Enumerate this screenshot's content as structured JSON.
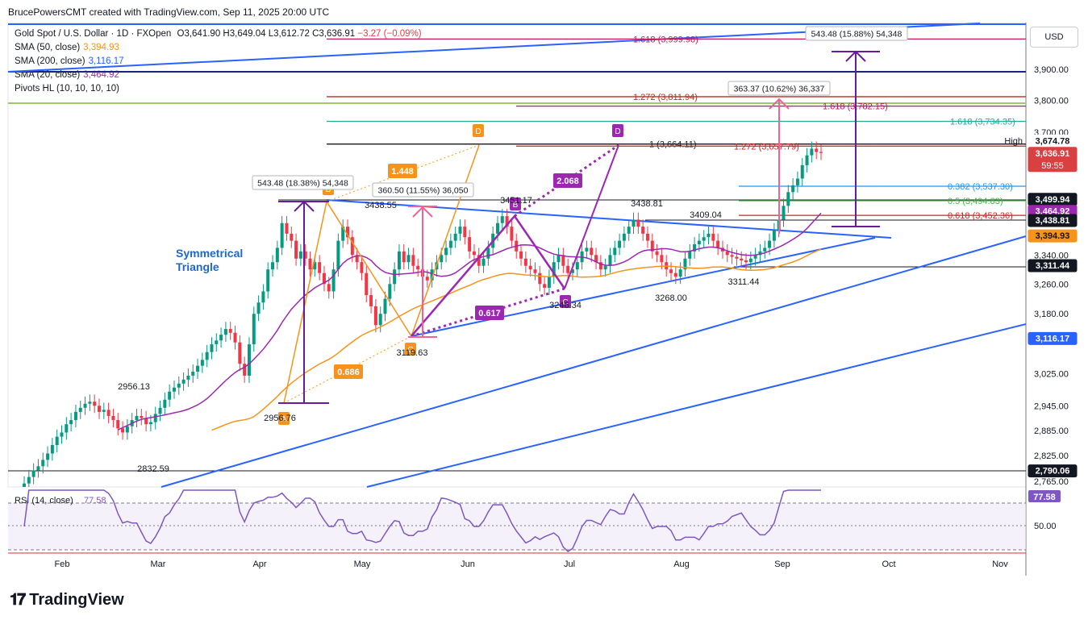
{
  "header": {
    "attribution": "BrucePowersCMT created with TradingView.com, Sep 11, 2025 20:00 UTC",
    "brand": "TradingView"
  },
  "legend": {
    "symbol_line": "Gold Spot / U.S. Dollar · 1D · FXOpen",
    "ohlc": {
      "open": "O3,641.90",
      "high": "H3,649.04",
      "low": "L3,612.72",
      "close": "C3,636.91",
      "change": "−3.27 (−0.09%)"
    },
    "sma50": {
      "label": "SMA (50, close)",
      "value": "3,394.93",
      "color": "#f7931a"
    },
    "sma200": {
      "label": "SMA (200, close)",
      "value": "3,116.17",
      "color": "#2962ff"
    },
    "sma20": {
      "label": "SMA (20, close)",
      "value": "3,464.92",
      "color": "#9c27b0"
    },
    "pivots": {
      "label": "Pivots HL (10, 10, 10, 10)"
    }
  },
  "chart_data": {
    "type": "line",
    "currency": "USD",
    "log_scale": true,
    "y_ticks": [
      "3,900.00",
      "3,800.00",
      "3,700.00",
      "3,340.00",
      "3,260.00",
      "3,180.00",
      "3,025.00",
      "2,945.00",
      "2,885.00",
      "2,825.00",
      "2,765.00"
    ],
    "y_tick_values": [
      3900,
      3800,
      3700,
      3340,
      3260,
      3180,
      3025,
      2945,
      2885,
      2825,
      2765
    ],
    "x_ticks": [
      "Feb",
      "Mar",
      "Apr",
      "May",
      "Jun",
      "Jul",
      "Aug",
      "Sep",
      "Oct",
      "Nov"
    ],
    "price_labels": [
      {
        "text": "3,674.78",
        "value": 3674.78,
        "bg": "#ffffff",
        "fg": "#131722",
        "tag": "High"
      },
      {
        "text": "3,636.91",
        "value": 3636.91,
        "bg": "#d94040",
        "fg": "#ffffff",
        "sub": "59:55"
      },
      {
        "text": "3,499.94",
        "value": 3499.94,
        "bg": "#131722",
        "fg": "#ffffff"
      },
      {
        "text": "3,464.92",
        "value": 3464.92,
        "bg": "#9c27b0",
        "fg": "#ffffff"
      },
      {
        "text": "3,438.81",
        "value": 3438.81,
        "bg": "#131722",
        "fg": "#ffffff"
      },
      {
        "text": "3,394.93",
        "value": 3394.93,
        "bg": "#f7931a",
        "fg": "#131722"
      },
      {
        "text": "3,311.44",
        "value": 3311.44,
        "bg": "#131722",
        "fg": "#ffffff"
      },
      {
        "text": "3,116.17",
        "value": 3116.17,
        "bg": "#2962ff",
        "fg": "#ffffff"
      },
      {
        "text": "2,790.06",
        "value": 2790.06,
        "bg": "#131722",
        "fg": "#ffffff"
      }
    ],
    "fib_levels": [
      {
        "text": "1.618 (3,999.98)",
        "value": 3999.98,
        "color": "#c2185b"
      },
      {
        "text": "1.272 (3,811.94)",
        "value": 3811.94,
        "color": "#c62828"
      },
      {
        "text": "1.618 (3,782.15)",
        "value": 3782.15,
        "color": "#c2185b"
      },
      {
        "text": "1.618 (3,734.35)",
        "value": 3734.35,
        "color": "#26a69a"
      },
      {
        "text": "1 (3,664.11)",
        "value": 3664.11,
        "color": "#131722"
      },
      {
        "text": "1.272 (3,657.79)",
        "value": 3657.79,
        "color": "#c62828"
      },
      {
        "text": "0.382 (3,537.30)",
        "value": 3537.3,
        "color": "#2196f3"
      },
      {
        "text": "0.5 (3,494.83)",
        "value": 3494.83,
        "color": "#4caf50"
      },
      {
        "text": "0.618 (3,452.36)",
        "value": 3452.36,
        "color": "#c62828"
      }
    ],
    "pivot_labels": [
      "2956.13",
      "2832.59",
      "2956.76",
      "3438.55",
      "3119.63",
      "3451.17",
      "3246.34",
      "3438.81",
      "3409.04",
      "3268.00",
      "3311.44"
    ],
    "measure_labels": [
      "543.48 (18.38%) 54,348",
      "360.50 (11.55%) 36,050",
      "363.37 (10.62%) 36,337",
      "543.48 (15.88%) 54,348"
    ],
    "pattern_labels": {
      "A": "A",
      "B": "B",
      "C": "C",
      "D": "D",
      "ratio1": "1.448",
      "ratio2": "0.686",
      "ratio3": "2.068",
      "ratio4": "0.617"
    },
    "annotation": [
      "Symmetrical",
      "Triangle"
    ],
    "colors": {
      "up": "#089981",
      "down": "#f23645",
      "sma50": "#f7931a",
      "sma200": "#2962ff",
      "sma20": "#9c27b0",
      "rsi": "#7e57c2",
      "abcd_orange": "#f7931a",
      "abcd_purple": "#9c27b0",
      "measure_pink": "#f06292"
    },
    "candles_close_approx": [
      2760,
      2775,
      2790,
      2800,
      2815,
      2830,
      2850,
      2870,
      2880,
      2900,
      2910,
      2930,
      2940,
      2950,
      2955,
      2945,
      2930,
      2935,
      2920,
      2910,
      2890,
      2880,
      2895,
      2910,
      2920,
      2915,
      2900,
      2905,
      2925,
      2940,
      2960,
      2980,
      2990,
      3000,
      3010,
      3020,
      3030,
      3045,
      3060,
      3080,
      3100,
      3110,
      3125,
      3140,
      3130,
      3105,
      3050,
      3020,
      3100,
      3180,
      3210,
      3240,
      3300,
      3320,
      3360,
      3430,
      3400,
      3380,
      3330,
      3350,
      3330,
      3300,
      3320,
      3290,
      3260,
      3240,
      3300,
      3380,
      3420,
      3390,
      3340,
      3320,
      3290,
      3230,
      3200,
      3150,
      3180,
      3220,
      3260,
      3300,
      3350,
      3320,
      3340,
      3310,
      3300,
      3280,
      3270,
      3300,
      3320,
      3340,
      3360,
      3380,
      3400,
      3420,
      3390,
      3350,
      3340,
      3310,
      3330,
      3360,
      3400,
      3430,
      3450,
      3420,
      3380,
      3350,
      3330,
      3310,
      3300,
      3290,
      3260,
      3250,
      3280,
      3320,
      3340,
      3310,
      3290,
      3300,
      3320,
      3350,
      3360,
      3340,
      3320,
      3300,
      3310,
      3340,
      3360,
      3380,
      3400,
      3420,
      3440,
      3420,
      3400,
      3380,
      3350,
      3340,
      3320,
      3300,
      3290,
      3280,
      3300,
      3330,
      3350,
      3370,
      3380,
      3390,
      3400,
      3380,
      3360,
      3350,
      3340,
      3335,
      3330,
      3325,
      3320,
      3330,
      3340,
      3350,
      3360,
      3380,
      3410,
      3440,
      3480,
      3520,
      3540,
      3560,
      3600,
      3630,
      3650,
      3640,
      3637
    ],
    "rsi": {
      "label": "RSI (14, close)",
      "value": "77.58",
      "ticks": [
        "50.00"
      ],
      "overbought": 70,
      "oversold": 30
    }
  }
}
